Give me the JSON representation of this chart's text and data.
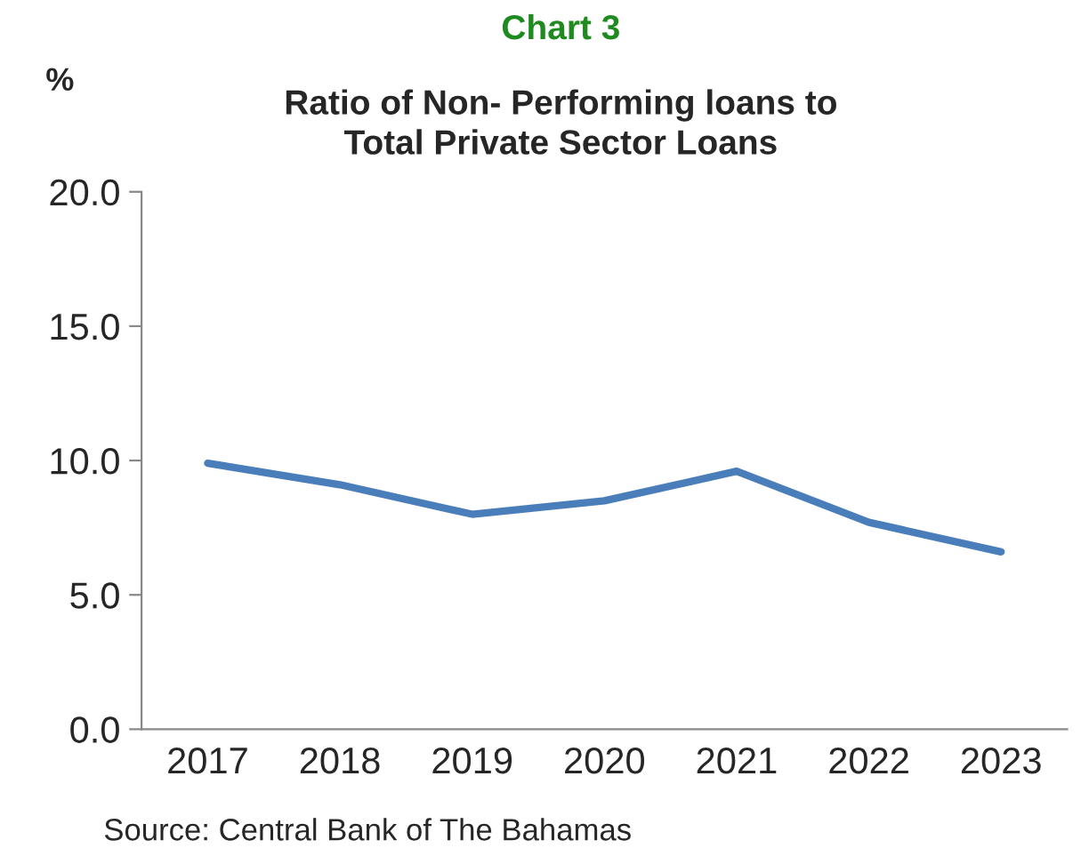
{
  "chart_data": {
    "type": "line",
    "title": "Chart 3",
    "subtitle": "Ratio of Non- Performing loans to\nTotal Private Sector Loans",
    "ylabel": "%",
    "categories": [
      "2017",
      "2018",
      "2019",
      "2020",
      "2021",
      "2022",
      "2023"
    ],
    "series": [
      {
        "color": "#4a7ebb",
        "values": [
          9.9,
          9.1,
          8.0,
          8.5,
          9.6,
          7.7,
          6.6
        ]
      }
    ],
    "ylim": [
      0,
      20
    ],
    "yticks": [
      {
        "value": 0,
        "label": "0.0"
      },
      {
        "value": 5,
        "label": "5.0"
      },
      {
        "value": 10,
        "label": "10.0"
      },
      {
        "value": 15,
        "label": "15.0"
      },
      {
        "value": 20,
        "label": "20.0"
      }
    ],
    "grid": false,
    "marker": "none",
    "line_style": "solid",
    "annotations": [
      "Source: Central Bank of The Bahamas"
    ]
  }
}
